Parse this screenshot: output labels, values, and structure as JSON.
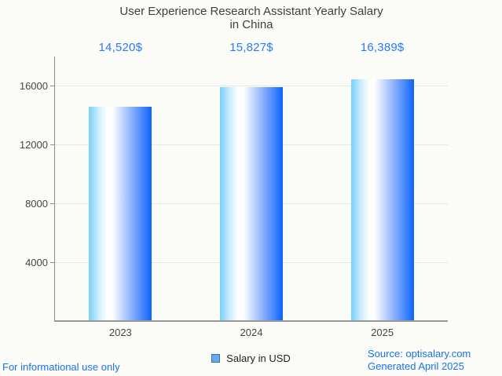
{
  "page": {
    "background": "#fbfbf8"
  },
  "chart_data": {
    "type": "bar",
    "title": "User Experience Research Assistant Yearly Salary in China",
    "title_line1": "User Experience Research Assistant Yearly Salary",
    "title_line2": "in China",
    "categories": [
      "2023",
      "2024",
      "2025"
    ],
    "series": [
      {
        "name": "Salary in USD",
        "values": [
          14520,
          15827,
          16389
        ]
      }
    ],
    "value_labels": [
      "14,520$",
      "15,827$",
      "16,389$"
    ],
    "yticks": [
      4000,
      8000,
      12000,
      16000
    ],
    "ylim": [
      0,
      17973
    ],
    "grid": true,
    "legend_position": "bottom",
    "colors": {
      "value_label_blue": "#2b7bf2",
      "bar_gradient": [
        "#77d0fa",
        "#ffffff",
        "#0d63fd"
      ],
      "legend_swatch_fill": "#68a9e9",
      "legend_swatch_border": "#3572b0",
      "title_gray": "#3d4043",
      "axis_label_gray": "#464646",
      "axis_line_gray": "#8c8c8c",
      "gridline_gray": "#e7e7e4",
      "footer_link_blue": "#1a73e8"
    }
  },
  "footer": {
    "disclaimer": "For informational use only",
    "source": "Source: optisalary.com",
    "generated": "Generated April 2025"
  }
}
